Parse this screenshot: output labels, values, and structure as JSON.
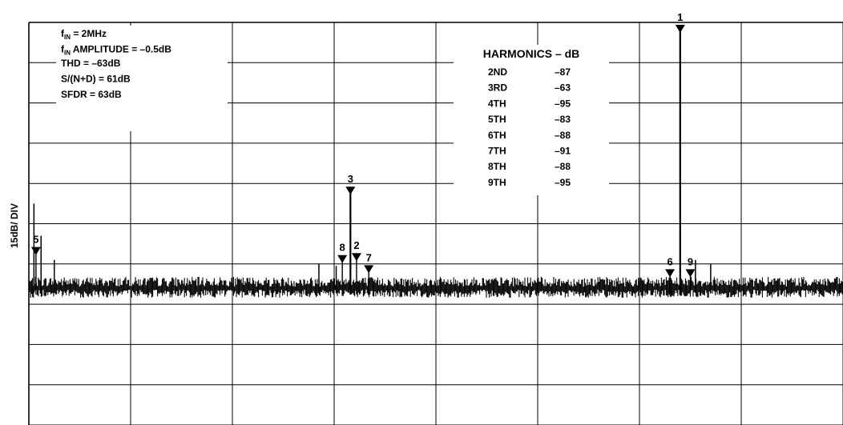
{
  "chart_data": {
    "type": "line",
    "ylabel": "15dB/ DIV",
    "xlabel": "",
    "grid": true,
    "divisions": {
      "x": 8,
      "y": 10
    },
    "annotation_box": {
      "lines": [
        {
          "main": "f",
          "sub": "IN",
          "rest": " = 2MHz"
        },
        {
          "main": "f",
          "sub": "IN",
          "rest": " AMPLITUDE = –0.5dB"
        },
        {
          "main": "THD = –63dB",
          "sub": "",
          "rest": ""
        },
        {
          "main": "S/(N+D) = 61dB",
          "sub": "",
          "rest": ""
        },
        {
          "main": "SFDR = 63dB",
          "sub": "",
          "rest": ""
        }
      ]
    },
    "harmonics_table": {
      "title": "HARMONICS – dB",
      "rows": [
        {
          "name": "2ND",
          "value": "–87"
        },
        {
          "name": "3RD",
          "value": "–63"
        },
        {
          "name": "4TH",
          "value": "–95"
        },
        {
          "name": "5TH",
          "value": "–83"
        },
        {
          "name": "6TH",
          "value": "–88"
        },
        {
          "name": "7TH",
          "value": "–91"
        },
        {
          "name": "8TH",
          "value": "–88"
        },
        {
          "name": "9TH",
          "value": "–95"
        }
      ]
    },
    "markers": [
      {
        "label": "1",
        "x_div": 6.4,
        "y_div": 0.08
      },
      {
        "label": "3",
        "x_div": 3.16,
        "y_div": 4.1
      },
      {
        "label": "5",
        "x_div": 0.07,
        "y_div": 5.6
      },
      {
        "label": "8",
        "x_div": 3.08,
        "y_div": 5.8
      },
      {
        "label": "2",
        "x_div": 3.22,
        "y_div": 5.75
      },
      {
        "label": "7",
        "x_div": 3.34,
        "y_div": 6.05
      },
      {
        "label": "6",
        "x_div": 6.3,
        "y_div": 6.15
      },
      {
        "label": "9",
        "x_div": 6.5,
        "y_div": 6.15
      }
    ],
    "noise_floor_div": 6.6
  }
}
